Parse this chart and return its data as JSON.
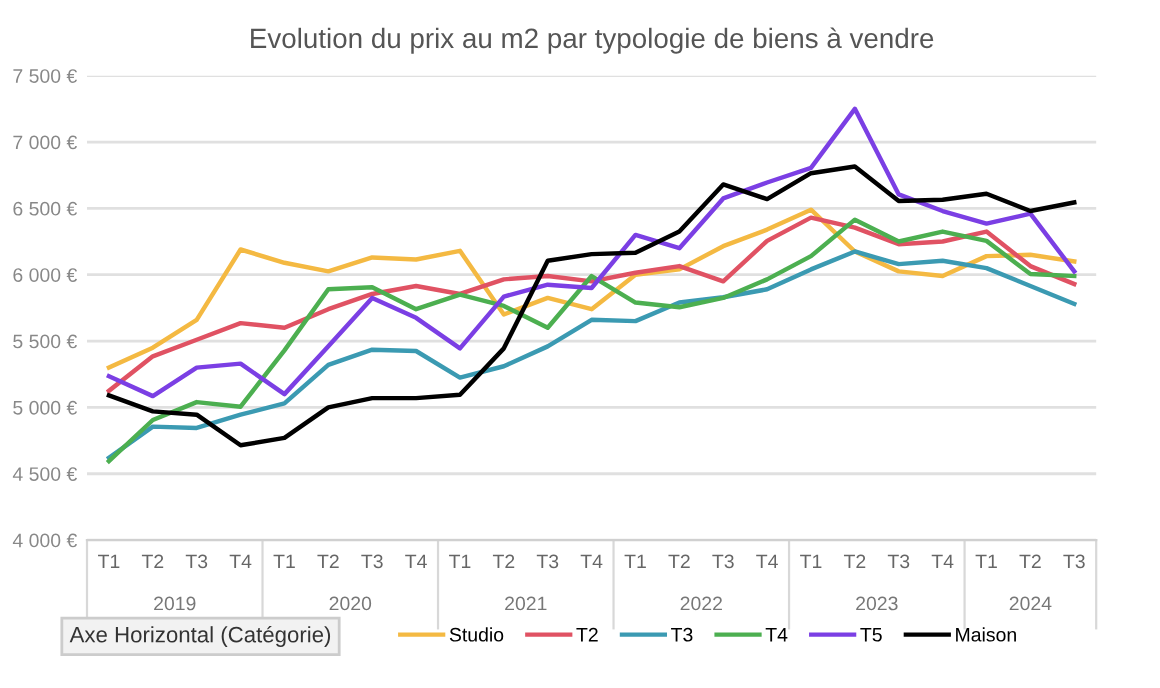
{
  "chart_data": {
    "type": "line",
    "title": "Evolution du prix au m2 par typologie de biens à vendre",
    "categories": [
      "T1",
      "T2",
      "T3",
      "T4",
      "T1",
      "T2",
      "T3",
      "T4",
      "T1",
      "T2",
      "T3",
      "T4",
      "T1",
      "T2",
      "T3",
      "T4",
      "T1",
      "T2",
      "T3",
      "T4",
      "T1",
      "T2",
      "T3"
    ],
    "annotations": [
      "2019",
      "2020",
      "2021",
      "2022",
      "2023",
      "2024",
      "Axe Horizontal (Catégorie)"
    ],
    "series": [
      {
        "name": "Studio",
        "color": "#f4b942",
        "values": [
          5300,
          5450,
          5660,
          6190,
          6090,
          6025,
          6130,
          6115,
          6180,
          5700,
          5825,
          5740,
          6000,
          6040,
          6215,
          6340,
          6490,
          6175,
          6025,
          5990,
          6140,
          6150,
          6100
        ]
      },
      {
        "name": "T2",
        "color": "#e05263",
        "values": [
          5125,
          5385,
          5510,
          5635,
          5600,
          5740,
          5855,
          5915,
          5855,
          5965,
          5990,
          5950,
          6015,
          6065,
          5950,
          6255,
          6430,
          6355,
          6230,
          6250,
          6325,
          6065,
          5930
        ]
      },
      {
        "name": "T3",
        "color": "#3b9ab2",
        "values": [
          4620,
          4855,
          4845,
          4945,
          5030,
          5320,
          5435,
          5425,
          5225,
          5310,
          5460,
          5660,
          5650,
          5790,
          5830,
          5890,
          6040,
          6175,
          6080,
          6105,
          6050,
          5915,
          5780
        ]
      },
      {
        "name": "T4",
        "color": "#4caf50",
        "values": [
          4595,
          4905,
          5040,
          5005,
          5430,
          5890,
          5905,
          5740,
          5850,
          5765,
          5600,
          5990,
          5790,
          5755,
          5825,
          5965,
          6140,
          6415,
          6250,
          6325,
          6255,
          6005,
          5990
        ]
      },
      {
        "name": "T5",
        "color": "#7b3fe4",
        "values": [
          5235,
          5085,
          5300,
          5330,
          5100,
          5460,
          5825,
          5675,
          5445,
          5835,
          5925,
          5900,
          6300,
          6200,
          6575,
          6695,
          6805,
          7250,
          6605,
          6480,
          6385,
          6460,
          6025
        ]
      },
      {
        "name": "Maison",
        "color": "#000000",
        "values": [
          5090,
          4970,
          4945,
          4715,
          4770,
          5000,
          5070,
          5070,
          5095,
          5445,
          6105,
          6155,
          6165,
          6325,
          6680,
          6570,
          6765,
          6815,
          6555,
          6565,
          6610,
          6480,
          6545
        ]
      }
    ],
    "ylim": [
      4000,
      7500
    ],
    "yticks": [
      {
        "value": 4000,
        "label": "4 000 €"
      },
      {
        "value": 4500,
        "label": "4 500 €"
      },
      {
        "value": 5000,
        "label": "5 000 €"
      },
      {
        "value": 5500,
        "label": "5 500 €"
      },
      {
        "value": 6000,
        "label": "6 000 €"
      },
      {
        "value": 6500,
        "label": "6 500 €"
      },
      {
        "value": 7000,
        "label": "7 000 €"
      },
      {
        "value": 7500,
        "label": "7 500 €"
      }
    ],
    "grid": "y",
    "legend": "bottom"
  }
}
